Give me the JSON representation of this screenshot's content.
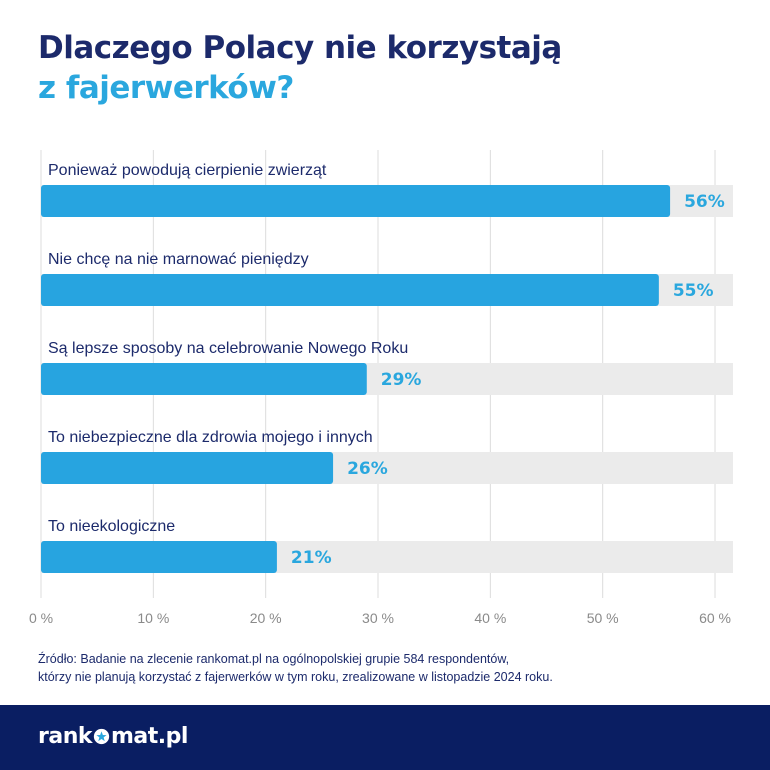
{
  "title": {
    "line1": "Dlaczego Polacy nie korzystają",
    "line2": "z fajerwerków?"
  },
  "colors": {
    "title_dark": "#1c2a6b",
    "accent": "#2aa7de",
    "bar_fill": "#27a4e0",
    "bar_track": "#ebebeb",
    "footer_bg": "#0a1e62"
  },
  "chart_data": {
    "type": "bar",
    "orientation": "horizontal",
    "categories": [
      "Ponieważ powodują cierpienie zwierząt",
      "Nie chcę na nie marnować pieniędzy",
      "Są lepsze sposoby na celebrowanie Nowego Roku",
      "To niebezpieczne dla zdrowia mojego i innych",
      "To nieekologiczne"
    ],
    "values": [
      56,
      55,
      29,
      26,
      21
    ],
    "value_labels": [
      "56%",
      "55%",
      "29%",
      "26%",
      "21%"
    ],
    "xlim": [
      0,
      61.6
    ],
    "ticks": [
      0,
      10,
      20,
      30,
      40,
      50,
      60
    ],
    "tick_labels": [
      "0 %",
      "10 %",
      "20 %",
      "30 %",
      "40 %",
      "50 %",
      "60 %"
    ],
    "grid": true
  },
  "source": {
    "line1": "Źródło: Badanie na zlecenie rankomat.pl na ogólnopolskiej grupie 584 respondentów,",
    "line2": "którzy nie planują korzystać z fajerwerków w tym roku, zrealizowane w listopadzie 2024 roku."
  },
  "footer": {
    "logo_before": "rank",
    "logo_after": "mat.pl",
    "logo_icon": "star-icon"
  }
}
